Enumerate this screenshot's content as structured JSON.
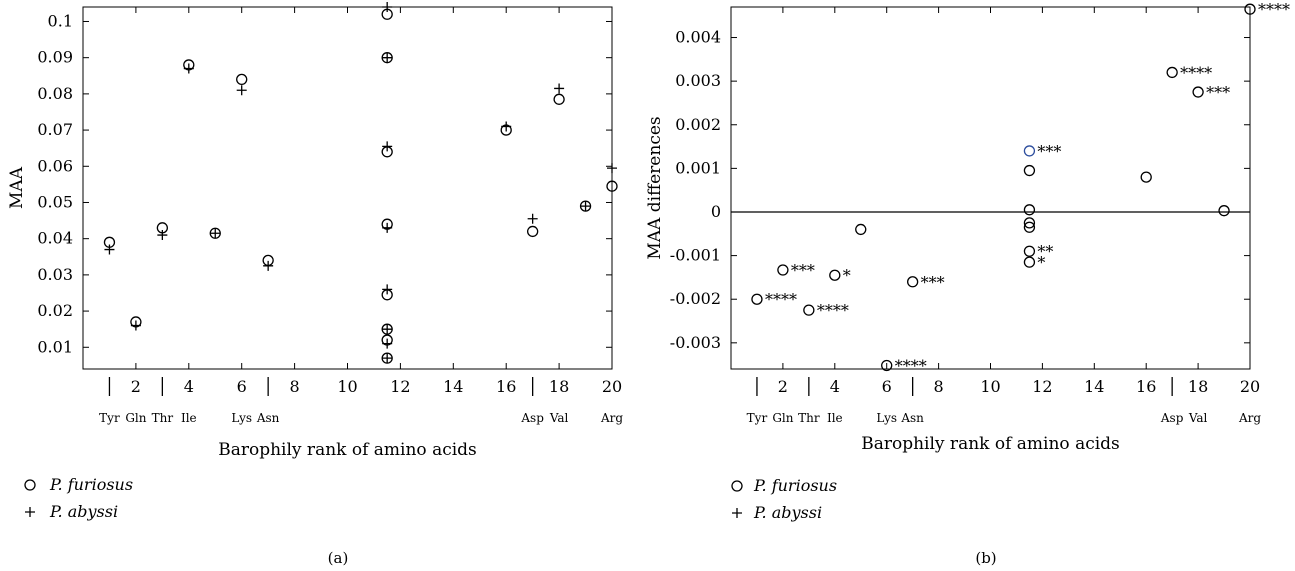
{
  "chart_data": [
    {
      "panel_label": "(a)",
      "type": "scatter",
      "xlabel": "Barophily rank of amino acids",
      "ylabel": "MAA",
      "xlim": [
        0,
        20
      ],
      "ylim": [
        0.004,
        0.104
      ],
      "xticks": [
        "2",
        "4",
        "6",
        "8",
        "10",
        "12",
        "14",
        "16",
        "18",
        "20"
      ],
      "yticks": [
        "0.01",
        "0.02",
        "0.03",
        "0.04",
        "0.05",
        "0.06",
        "0.07",
        "0.08",
        "0.09",
        "0.1"
      ],
      "aa_labels": [
        {
          "rank": 1,
          "label": "Tyr"
        },
        {
          "rank": 2,
          "label": "Gln"
        },
        {
          "rank": 3,
          "label": "Thr"
        },
        {
          "rank": 4,
          "label": "Ile"
        },
        {
          "rank": 6,
          "label": "Lys"
        },
        {
          "rank": 7,
          "label": "Asn"
        },
        {
          "rank": 17,
          "label": "Asp"
        },
        {
          "rank": 18,
          "label": "Val"
        },
        {
          "rank": 20,
          "label": "Arg"
        }
      ],
      "separators": [
        1,
        3,
        7,
        17
      ],
      "series": [
        {
          "name": "P. furiosus",
          "marker": "circle",
          "x": [
            1,
            2,
            3,
            4,
            5,
            6,
            7,
            11.5,
            11.5,
            11.5,
            11.5,
            11.5,
            11.5,
            11.5,
            11.5,
            16,
            17,
            18,
            19,
            20
          ],
          "y": [
            0.039,
            0.017,
            0.043,
            0.088,
            0.0415,
            0.084,
            0.034,
            0.102,
            0.09,
            0.064,
            0.044,
            0.0245,
            0.015,
            0.012,
            0.007,
            0.07,
            0.042,
            0.0785,
            0.049,
            0.0545
          ]
        },
        {
          "name": "P. abyssi",
          "marker": "plus",
          "x": [
            1,
            2,
            3,
            4,
            5,
            6,
            7,
            11.5,
            11.5,
            11.5,
            11.5,
            11.5,
            11.5,
            11.5,
            11.5,
            16,
            17,
            18,
            19,
            20
          ],
          "y": [
            0.037,
            0.016,
            0.041,
            0.087,
            0.0415,
            0.081,
            0.0325,
            0.104,
            0.09,
            0.0655,
            0.043,
            0.026,
            0.015,
            0.011,
            0.007,
            0.071,
            0.0455,
            0.0815,
            0.049,
            0.0595
          ]
        }
      ]
    },
    {
      "panel_label": "(b)",
      "type": "scatter",
      "xlabel": "Barophily rank of amino acids",
      "ylabel": "MAA differences",
      "xlim": [
        0,
        20
      ],
      "ylim": [
        -0.0036,
        0.0047
      ],
      "xticks": [
        "2",
        "4",
        "6",
        "8",
        "10",
        "12",
        "14",
        "16",
        "18",
        "20"
      ],
      "yticks": [
        "-0.003",
        "-0.002",
        "-0.001",
        "0",
        "0.001",
        "0.002",
        "0.003",
        "0.004"
      ],
      "aa_labels": [
        {
          "rank": 1,
          "label": "Tyr"
        },
        {
          "rank": 2,
          "label": "Gln"
        },
        {
          "rank": 3,
          "label": "Thr"
        },
        {
          "rank": 4,
          "label": "Ile"
        },
        {
          "rank": 6,
          "label": "Lys"
        },
        {
          "rank": 7,
          "label": "Asn"
        },
        {
          "rank": 17,
          "label": "Asp"
        },
        {
          "rank": 18,
          "label": "Val"
        },
        {
          "rank": 20,
          "label": "Arg"
        }
      ],
      "separators": [
        1,
        3,
        7,
        17
      ],
      "zero_line": true,
      "points": [
        {
          "x": 1,
          "y": -0.002,
          "sig": "****"
        },
        {
          "x": 2,
          "y": -0.00133,
          "sig": "***"
        },
        {
          "x": 3,
          "y": -0.00225,
          "sig": "****"
        },
        {
          "x": 4,
          "y": -0.00145,
          "sig": "*"
        },
        {
          "x": 5,
          "y": -0.0004,
          "sig": ""
        },
        {
          "x": 6,
          "y": -0.00352,
          "sig": "****"
        },
        {
          "x": 7,
          "y": -0.0016,
          "sig": "***"
        },
        {
          "x": 11.5,
          "y": 0.0014,
          "sig": "***",
          "color": "#2e4e9e"
        },
        {
          "x": 11.5,
          "y": 0.00095,
          "sig": ""
        },
        {
          "x": 11.5,
          "y": 5e-05,
          "sig": ""
        },
        {
          "x": 11.5,
          "y": -0.00025,
          "sig": ""
        },
        {
          "x": 11.5,
          "y": -0.00035,
          "sig": ""
        },
        {
          "x": 11.5,
          "y": -0.0009,
          "sig": "**"
        },
        {
          "x": 11.5,
          "y": -0.00115,
          "sig": "*"
        },
        {
          "x": 16,
          "y": 0.0008,
          "sig": ""
        },
        {
          "x": 17,
          "y": 0.0032,
          "sig": "****"
        },
        {
          "x": 18,
          "y": 0.00275,
          "sig": "***"
        },
        {
          "x": 19,
          "y": 3e-05,
          "sig": ""
        },
        {
          "x": 20,
          "y": 0.00465,
          "sig": "****"
        }
      ],
      "legend": [
        {
          "name": "P. furiosus",
          "marker": "circle"
        },
        {
          "name": "P. abyssi",
          "marker": "plus"
        }
      ]
    }
  ]
}
